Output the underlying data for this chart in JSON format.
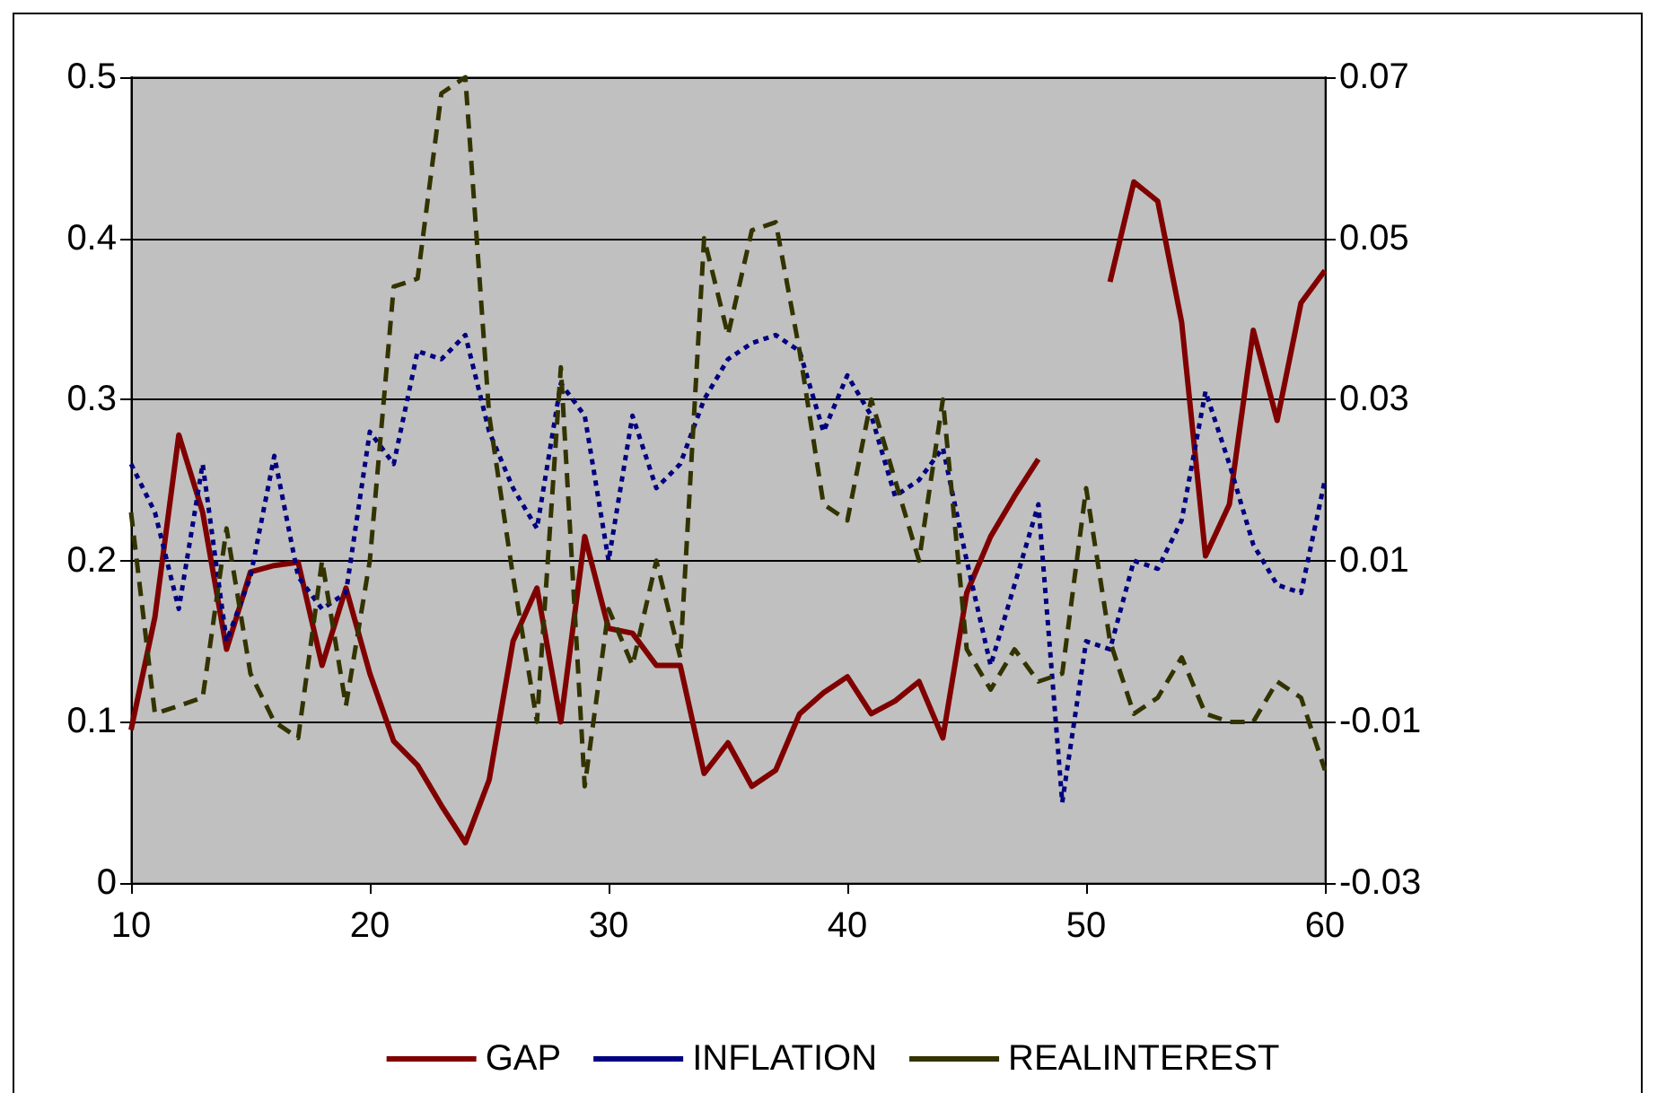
{
  "chart_data": {
    "type": "line",
    "x": [
      10,
      11,
      12,
      13,
      14,
      15,
      16,
      17,
      18,
      19,
      20,
      21,
      22,
      23,
      24,
      25,
      26,
      27,
      28,
      29,
      30,
      31,
      32,
      33,
      34,
      35,
      36,
      37,
      38,
      39,
      40,
      41,
      42,
      43,
      44,
      45,
      46,
      47,
      48,
      49,
      50,
      51,
      52,
      53,
      54,
      55,
      56,
      57,
      58,
      59,
      60
    ],
    "series": [
      {
        "name": "GAP",
        "color": "#800000",
        "line_style": "solid",
        "values": [
          0.095,
          0.165,
          0.278,
          0.23,
          0.145,
          0.193,
          0.197,
          0.199,
          0.135,
          0.183,
          0.13,
          0.088,
          0.073,
          0.048,
          0.025,
          0.064,
          0.15,
          0.183,
          0.1,
          0.215,
          0.158,
          0.155,
          0.135,
          0.135,
          0.068,
          0.087,
          0.06,
          0.07,
          0.105,
          0.118,
          0.128,
          0.105,
          0.113,
          0.125,
          0.09,
          0.18,
          0.215,
          0.24,
          0.263,
          null,
          null,
          0.373,
          0.435,
          0.423,
          0.348,
          0.203,
          0.235,
          0.343,
          0.287,
          0.36,
          0.38
        ]
      },
      {
        "name": "INFLATION",
        "color": "#000080",
        "line_style": "dotted",
        "axis": "y2",
        "values": [
          0.022,
          0.016,
          0.004,
          0.022,
          0.0,
          0.008,
          0.023,
          0.008,
          0.004,
          0.006,
          0.026,
          0.022,
          0.036,
          0.035,
          0.038,
          0.026,
          0.019,
          0.014,
          0.032,
          0.028,
          0.01,
          0.028,
          0.019,
          0.022,
          0.03,
          0.035,
          0.037,
          0.038,
          0.036,
          0.026,
          0.033,
          0.028,
          0.018,
          0.02,
          0.024,
          0.01,
          -0.003,
          0.007,
          0.017,
          -0.02,
          0.0,
          -0.001,
          0.01,
          0.009,
          0.015,
          0.031,
          0.022,
          0.012,
          0.007,
          0.006,
          0.02
        ]
      },
      {
        "name": "REALINTEREST",
        "color": "#333300",
        "line_style": "dashed",
        "axis": "y2",
        "values": [
          0.016,
          -0.009,
          -0.008,
          -0.007,
          0.014,
          -0.004,
          -0.01,
          -0.012,
          0.01,
          -0.008,
          0.01,
          0.044,
          0.045,
          0.068,
          0.07,
          0.028,
          0.008,
          -0.01,
          0.034,
          -0.018,
          0.004,
          -0.003,
          0.01,
          -0.002,
          0.05,
          0.038,
          0.051,
          0.052,
          0.036,
          0.017,
          0.015,
          0.03,
          0.02,
          0.01,
          0.03,
          -0.001,
          -0.006,
          -0.001,
          -0.005,
          -0.004,
          0.019,
          0.0,
          -0.009,
          -0.007,
          -0.002,
          -0.009,
          -0.01,
          -0.01,
          -0.005,
          -0.007,
          -0.016
        ]
      }
    ],
    "xlim": [
      10,
      60
    ],
    "xticks": [
      10,
      20,
      30,
      40,
      50,
      60
    ],
    "ylim": [
      0,
      0.5
    ],
    "yticks": [
      0,
      0.1,
      0.2,
      0.3,
      0.4,
      0.5
    ],
    "y2lim": [
      -0.03,
      0.07
    ],
    "y2ticks": [
      -0.03,
      -0.01,
      0.01,
      0.03,
      0.05,
      0.07
    ],
    "grid": "y",
    "legend": "bottom",
    "marker": "none"
  }
}
